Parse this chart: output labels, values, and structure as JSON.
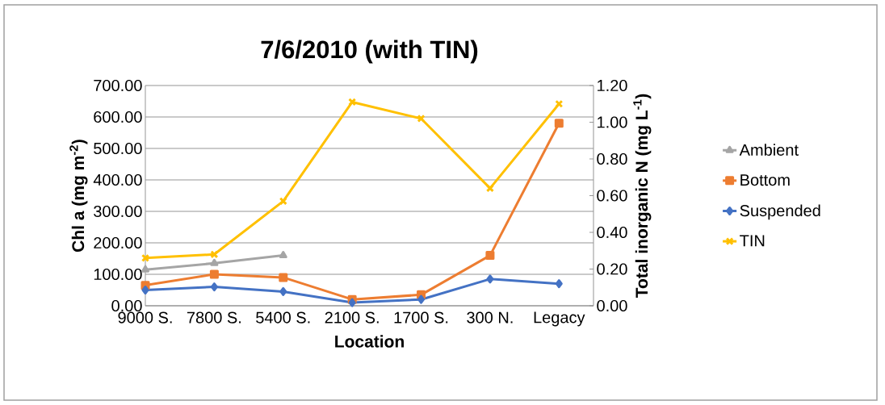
{
  "chart_data": {
    "type": "line",
    "title": "7/6/2010 (with TIN)",
    "xlabel": "Location",
    "ylabel": "Chl a (mg m$^{-2}$)",
    "y2label": "Total inorganic N (mg L$^{-1}$)",
    "categories": [
      "9000 S.",
      "7800 S.",
      "5400 S.",
      "2100 S.",
      "1700 S.",
      "300 N.",
      "Legacy"
    ],
    "series": [
      {
        "name": "Ambient",
        "color": "#a5a5a5",
        "marker": "triangle",
        "values": [
          115,
          135,
          160,
          null,
          null,
          null,
          null
        ]
      },
      {
        "name": "Bottom",
        "color": "#ed7d31",
        "marker": "square",
        "values": [
          65,
          100,
          90,
          20,
          35,
          160,
          580
        ]
      },
      {
        "name": "Suspended",
        "color": "#4472c4",
        "marker": "diamond",
        "values": [
          50,
          60,
          45,
          10,
          20,
          85,
          70
        ]
      },
      {
        "name": "TIN",
        "color": "#ffc000",
        "marker": "cross",
        "axis": "y2",
        "values": [
          0.26,
          0.28,
          0.57,
          1.11,
          1.02,
          0.64,
          1.1
        ]
      }
    ],
    "ylim": [
      0,
      700
    ],
    "yticks": [
      {
        "value": 0,
        "label": "0.00"
      },
      {
        "value": 100,
        "label": "100.00"
      },
      {
        "value": 200,
        "label": "200.00"
      },
      {
        "value": 300,
        "label": "300.00"
      },
      {
        "value": 400,
        "label": "400.00"
      },
      {
        "value": 500,
        "label": "500.00"
      },
      {
        "value": 600,
        "label": "600.00"
      },
      {
        "value": 700,
        "label": "700.00"
      }
    ],
    "y2lim": [
      0,
      1.2
    ],
    "y2ticks": [
      {
        "value": 0,
        "label": "0.00"
      },
      {
        "value": 0.2,
        "label": "0.20"
      },
      {
        "value": 0.4,
        "label": "0.40"
      },
      {
        "value": 0.6,
        "label": "0.60"
      },
      {
        "value": 0.8,
        "label": "0.80"
      },
      {
        "value": 1.0,
        "label": "1.00"
      },
      {
        "value": 1.2,
        "label": "1.20"
      }
    ],
    "grid": "y",
    "legend": "right"
  }
}
